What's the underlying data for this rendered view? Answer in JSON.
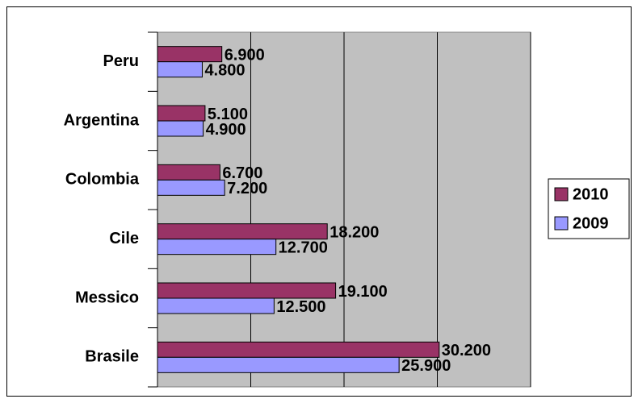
{
  "chart_data": {
    "type": "hbar",
    "categories": [
      "Peru",
      "Argentina",
      "Colombia",
      "Cile",
      "Messico",
      "Brasile"
    ],
    "series": [
      {
        "name": "2010",
        "color": "#993366",
        "values": [
          6900,
          5100,
          6700,
          18200,
          19100,
          30200
        ],
        "value_labels": [
          "6.900",
          "5.100",
          "6.700",
          "18.200",
          "19.100",
          "30.200"
        ]
      },
      {
        "name": "2009",
        "color": "#9999ff",
        "values": [
          4800,
          4900,
          7200,
          12700,
          12500,
          25900
        ],
        "value_labels": [
          "4.800",
          "4.900",
          "7.200",
          "12.700",
          "12.500",
          "25.900"
        ]
      }
    ],
    "xlim": [
      0,
      40000
    ],
    "xticks": [
      0,
      10000,
      20000,
      30000,
      40000
    ],
    "grid": true,
    "legend": "right"
  }
}
